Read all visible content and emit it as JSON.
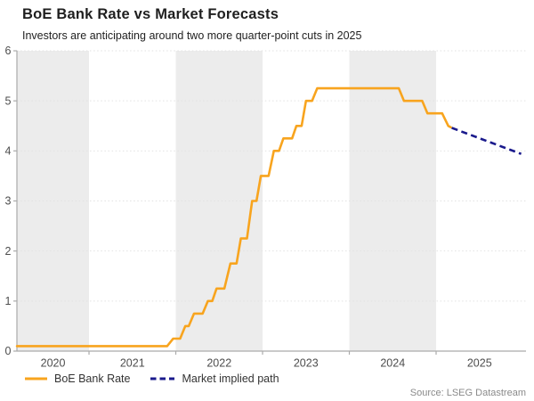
{
  "header": {
    "title": "BoE Bank Rate vs Market Forecasts",
    "subtitle": "Investors are anticipating around two more quarter-point cuts in 2025"
  },
  "source": "Source: LSEG Datastream",
  "colors": {
    "band": "#ECECEC",
    "grid": "#E2E2E2",
    "axis": "#ABABAB",
    "tick_label": "#4D4D4D",
    "boe_orange": "#F8A41E",
    "market_navy": "#1A1A8C"
  },
  "chart_data": {
    "type": "line",
    "title": "BoE Bank Rate vs Market Forecasts",
    "subtitle": "Investors are anticipating around two more quarter-point cuts in 2025",
    "xlabel": "",
    "ylabel": "",
    "grid": "horizontal-dotted",
    "legend_position": "bottom-left",
    "x_axis": {
      "range": [
        2020.169,
        2026.0
      ],
      "year_ticks": [
        2021,
        2022,
        2023,
        2024,
        2025
      ],
      "labels": [
        {
          "text": "2020",
          "t": 2020.585
        },
        {
          "text": "2021",
          "t": 2021.5
        },
        {
          "text": "2022",
          "t": 2022.5
        },
        {
          "text": "2023",
          "t": 2023.5
        },
        {
          "text": "2024",
          "t": 2024.5
        },
        {
          "text": "2025",
          "t": 2025.5
        }
      ],
      "shaded_bands": [
        [
          2020.169,
          2021.0
        ],
        [
          2022.0,
          2023.0
        ],
        [
          2024.0,
          2025.0
        ]
      ]
    },
    "y_axis": {
      "range": [
        0,
        6
      ],
      "ticks": [
        0,
        1,
        2,
        3,
        4,
        5,
        6
      ]
    },
    "series": [
      {
        "name": "BoE Bank Rate",
        "style": "solid",
        "color": "#F8A41E",
        "points": [
          [
            2020.17,
            0.1
          ],
          [
            2021.9,
            0.1
          ],
          [
            2021.97,
            0.25
          ],
          [
            2022.05,
            0.25
          ],
          [
            2022.11,
            0.5
          ],
          [
            2022.15,
            0.5
          ],
          [
            2022.21,
            0.75
          ],
          [
            2022.31,
            0.75
          ],
          [
            2022.37,
            1.0
          ],
          [
            2022.42,
            1.0
          ],
          [
            2022.47,
            1.25
          ],
          [
            2022.56,
            1.25
          ],
          [
            2022.63,
            1.75
          ],
          [
            2022.7,
            1.75
          ],
          [
            2022.75,
            2.25
          ],
          [
            2022.82,
            2.25
          ],
          [
            2022.88,
            3.0
          ],
          [
            2022.93,
            3.0
          ],
          [
            2022.98,
            3.5
          ],
          [
            2023.07,
            3.5
          ],
          [
            2023.13,
            4.0
          ],
          [
            2023.19,
            4.0
          ],
          [
            2023.24,
            4.25
          ],
          [
            2023.34,
            4.25
          ],
          [
            2023.39,
            4.5
          ],
          [
            2023.45,
            4.5
          ],
          [
            2023.5,
            5.0
          ],
          [
            2023.57,
            5.0
          ],
          [
            2023.63,
            5.25
          ],
          [
            2024.57,
            5.25
          ],
          [
            2024.63,
            5.0
          ],
          [
            2024.84,
            5.0
          ],
          [
            2024.9,
            4.75
          ],
          [
            2025.07,
            4.75
          ],
          [
            2025.14,
            4.5
          ],
          [
            2025.17,
            4.47
          ]
        ]
      },
      {
        "name": "Market implied path",
        "style": "dashed",
        "color": "#1A1A8C",
        "points": [
          [
            2025.18,
            4.46
          ],
          [
            2025.98,
            3.94
          ]
        ]
      }
    ]
  }
}
